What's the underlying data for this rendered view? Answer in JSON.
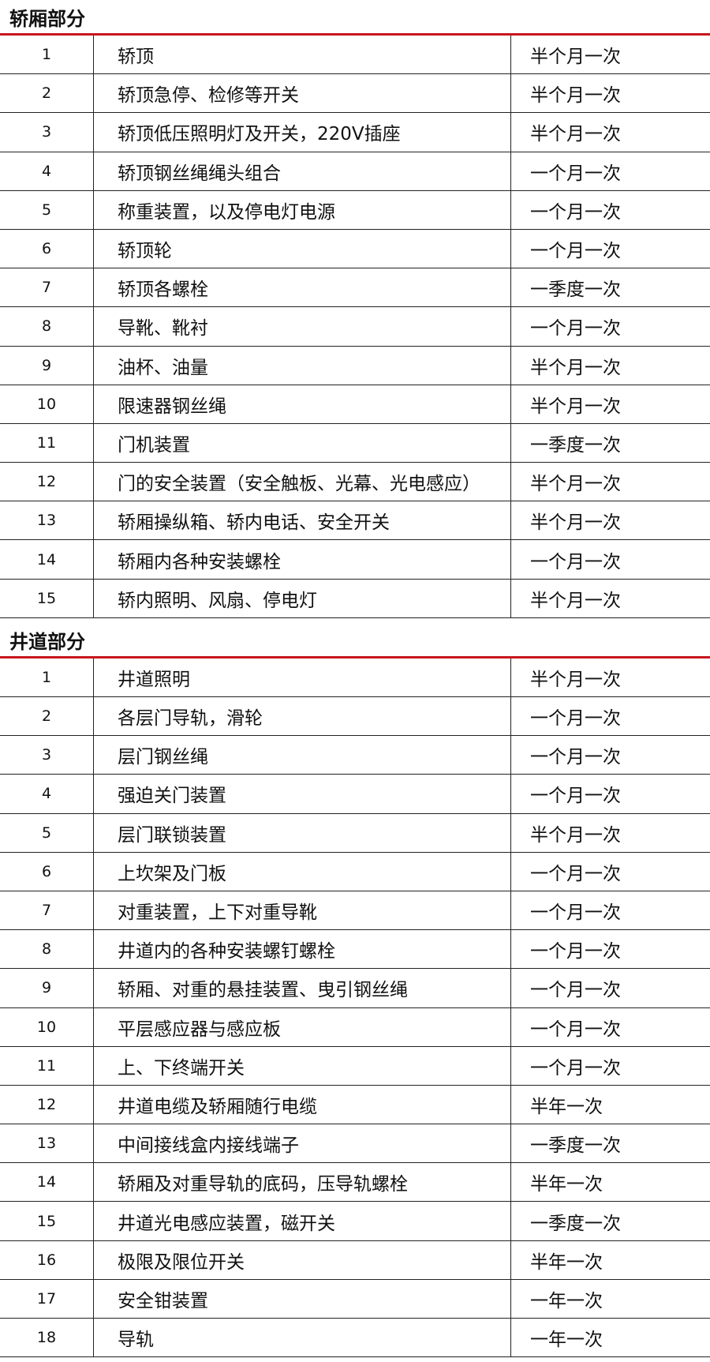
{
  "accent_color": "#c8161d",
  "sections": [
    {
      "title": "轿厢部分",
      "rows": [
        [
          "1",
          "轿顶",
          "半个月一次"
        ],
        [
          "2",
          "轿顶急停、检修等开关",
          "半个月一次"
        ],
        [
          "3",
          "轿顶低压照明灯及开关，220V插座",
          "半个月一次"
        ],
        [
          "4",
          "轿顶钢丝绳绳头组合",
          "一个月一次"
        ],
        [
          "5",
          "称重装置，以及停电灯电源",
          "一个月一次"
        ],
        [
          "6",
          "轿顶轮",
          "一个月一次"
        ],
        [
          "7",
          "轿顶各螺栓",
          "一季度一次"
        ],
        [
          "8",
          "导靴、靴衬",
          "一个月一次"
        ],
        [
          "9",
          "油杯、油量",
          "半个月一次"
        ],
        [
          "10",
          "限速器钢丝绳",
          "半个月一次"
        ],
        [
          "11",
          "门机装置",
          "一季度一次"
        ],
        [
          "12",
          "门的安全装置（安全触板、光幕、光电感应）",
          "半个月一次"
        ],
        [
          "13",
          "轿厢操纵箱、轿内电话、安全开关",
          "半个月一次"
        ],
        [
          "14",
          "轿厢内各种安装螺栓",
          "一个月一次"
        ],
        [
          "15",
          "轿内照明、风扇、停电灯",
          "半个月一次"
        ]
      ]
    },
    {
      "title": "井道部分",
      "rows": [
        [
          "1",
          "井道照明",
          "半个月一次"
        ],
        [
          "2",
          "各层门导轨，滑轮",
          "一个月一次"
        ],
        [
          "3",
          "层门钢丝绳",
          "一个月一次"
        ],
        [
          "4",
          "强迫关门装置",
          "一个月一次"
        ],
        [
          "5",
          "层门联锁装置",
          "半个月一次"
        ],
        [
          "6",
          "上坎架及门板",
          "一个月一次"
        ],
        [
          "7",
          "对重装置，上下对重导靴",
          "一个月一次"
        ],
        [
          "8",
          "井道内的各种安装螺钉螺栓",
          "一个月一次"
        ],
        [
          "9",
          "轿厢、对重的悬挂装置、曳引钢丝绳",
          "一个月一次"
        ],
        [
          "10",
          "平层感应器与感应板",
          "一个月一次"
        ],
        [
          "11",
          "上、下终端开关",
          "一个月一次"
        ],
        [
          "12",
          "井道电缆及轿厢随行电缆",
          "半年一次"
        ],
        [
          "13",
          "中间接线盒内接线端子",
          "一季度一次"
        ],
        [
          "14",
          "轿厢及对重导轨的底码，压导轨螺栓",
          "半年一次"
        ],
        [
          "15",
          "井道光电感应装置，磁开关",
          "一季度一次"
        ],
        [
          "16",
          "极限及限位开关",
          "半年一次"
        ],
        [
          "17",
          "安全钳装置",
          "一年一次"
        ],
        [
          "18",
          "导轨",
          "一年一次"
        ]
      ]
    }
  ]
}
